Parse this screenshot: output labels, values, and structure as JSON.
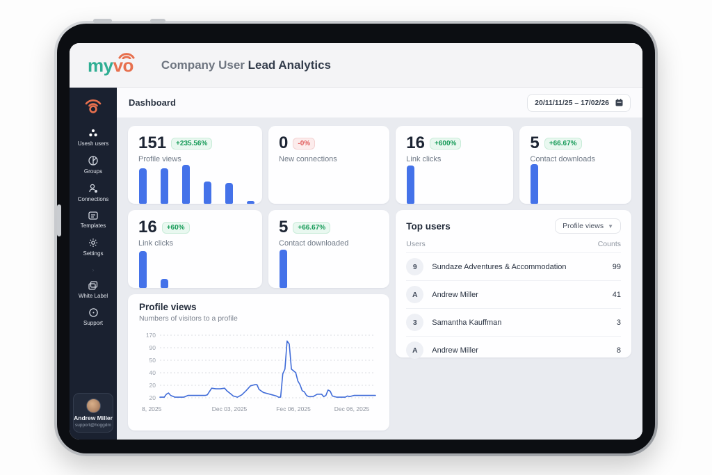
{
  "colors": {
    "accent_blue": "#4472e9",
    "line_blue": "#3f6bd8",
    "badge_green": "#159a57",
    "badge_red": "#e05c5c",
    "sidebar_bg": "#1a2130",
    "logo_teal": "#2fae93",
    "logo_orange": "#e7704e"
  },
  "logo": {
    "my": "my",
    "vo": "vo"
  },
  "header": {
    "title_prefix": "Company User ",
    "title_emph": "Lead Analytics"
  },
  "topbar": {
    "dashboard_label": "Dashboard",
    "date_range": "20/11/11/25 – 17/02/26"
  },
  "sidebar": {
    "items": [
      {
        "label": "Usesh users"
      },
      {
        "label": "Groups"
      },
      {
        "label": "Connections"
      },
      {
        "label": "Templates"
      },
      {
        "label": "Settings"
      },
      {
        "label": "White Label"
      },
      {
        "label": "Support"
      }
    ],
    "profile": {
      "name": "Andrew Miller",
      "email": "support@hoggdmig"
    }
  },
  "stats": [
    {
      "value": "151",
      "delta": "+235.56%",
      "delta_type": "up",
      "label": "Profile views",
      "bars": [
        88,
        88,
        96,
        56,
        52,
        7
      ]
    },
    {
      "value": "0",
      "delta": "-0%",
      "delta_type": "down",
      "label": "New connections",
      "bars": []
    },
    {
      "value": "16",
      "delta": "+600%",
      "delta_type": "up",
      "label": "Link clicks",
      "bars": [
        95
      ]
    },
    {
      "value": "5",
      "delta": "+66.67%",
      "delta_type": "up",
      "label": "Contact downloads",
      "bars": [
        98
      ]
    },
    {
      "value": "16",
      "delta": "+60%",
      "delta_type": "up",
      "label": "Link clicks",
      "bars": [
        92,
        22
      ]
    },
    {
      "value": "5",
      "delta": "+66.67%",
      "delta_type": "up",
      "label": "Contact downloaded",
      "bars": [
        95
      ]
    }
  ],
  "top_users": {
    "title": "Top users",
    "filter_label": "Profile views",
    "col_users": "Users",
    "col_counts": "Counts",
    "rows": [
      {
        "avatar": "9",
        "name": "Sundaze Adventures & Accommodation",
        "count": "99"
      },
      {
        "avatar": "A",
        "name": "Andrew Miller",
        "count": "41"
      },
      {
        "avatar": "3",
        "name": "Samantha Kauffman",
        "count": "3"
      },
      {
        "avatar": "A",
        "name": "Andrew Miller",
        "count": "8"
      }
    ]
  },
  "chart_data": {
    "type": "line",
    "title": "Profile views",
    "subtitle": "Numbers of visitors to a profile",
    "ylabel": "",
    "xlabel": "",
    "ylim": [
      0,
      100
    ],
    "grid": "dashed-horizontal",
    "legend": "none",
    "line_color": "#3f6bd8",
    "y_tick_labels": [
      "170",
      "90",
      "50",
      "40",
      "20",
      "20"
    ],
    "x_tick_labels": [
      "8, 2025",
      "Dec 03, 2025",
      "Fec 06, 2025",
      "Dec 06, 2025"
    ],
    "points": [
      [
        0,
        1
      ],
      [
        2,
        1
      ],
      [
        3,
        6
      ],
      [
        4,
        8
      ],
      [
        5,
        4
      ],
      [
        7,
        1
      ],
      [
        9,
        1
      ],
      [
        11,
        1
      ],
      [
        13,
        4
      ],
      [
        15,
        4
      ],
      [
        17,
        4
      ],
      [
        19,
        4
      ],
      [
        21,
        4
      ],
      [
        22,
        5
      ],
      [
        24,
        16
      ],
      [
        26,
        15
      ],
      [
        28,
        15
      ],
      [
        30,
        16
      ],
      [
        31,
        12
      ],
      [
        33,
        6
      ],
      [
        34,
        3
      ],
      [
        36,
        1
      ],
      [
        38,
        5
      ],
      [
        40,
        12
      ],
      [
        42,
        20
      ],
      [
        44,
        22
      ],
      [
        45,
        22
      ],
      [
        46,
        14
      ],
      [
        48,
        9
      ],
      [
        50,
        7
      ],
      [
        52,
        5
      ],
      [
        54,
        3
      ],
      [
        55,
        1
      ],
      [
        56,
        1
      ],
      [
        57,
        40
      ],
      [
        58,
        48
      ],
      [
        59,
        95
      ],
      [
        60,
        90
      ],
      [
        61,
        48
      ],
      [
        62,
        45
      ],
      [
        63,
        42
      ],
      [
        64,
        28
      ],
      [
        65,
        22
      ],
      [
        66,
        12
      ],
      [
        67,
        10
      ],
      [
        68,
        4
      ],
      [
        69,
        2
      ],
      [
        71,
        2
      ],
      [
        73,
        6
      ],
      [
        74,
        6
      ],
      [
        75,
        6
      ],
      [
        76,
        2
      ],
      [
        77,
        4
      ],
      [
        78,
        13
      ],
      [
        79,
        11
      ],
      [
        80,
        3
      ],
      [
        82,
        1
      ],
      [
        84,
        1
      ],
      [
        86,
        1
      ],
      [
        87,
        3
      ],
      [
        88,
        2
      ],
      [
        90,
        4
      ],
      [
        92,
        4
      ],
      [
        94,
        4
      ],
      [
        96,
        4
      ],
      [
        98,
        4
      ],
      [
        100,
        4
      ]
    ]
  }
}
